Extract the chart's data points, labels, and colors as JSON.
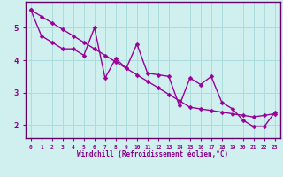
{
  "xlabel": "Windchill (Refroidissement éolien,°C)",
  "bg_color": "#d0f0f0",
  "line_color": "#990099",
  "grid_color": "#aadddd",
  "spine_color": "#660066",
  "tick_label_color": "#880088",
  "xlabel_color": "#880088",
  "xlim": [
    -0.5,
    23.5
  ],
  "ylim": [
    1.6,
    5.8
  ],
  "xticks": [
    0,
    1,
    2,
    3,
    4,
    5,
    6,
    7,
    8,
    9,
    10,
    11,
    12,
    13,
    14,
    15,
    16,
    17,
    18,
    19,
    20,
    21,
    22,
    23
  ],
  "yticks": [
    2,
    3,
    4,
    5
  ],
  "series1_x": [
    0,
    1,
    2,
    3,
    4,
    5,
    6,
    7,
    8,
    9,
    10,
    11,
    12,
    13,
    14,
    15,
    16,
    17,
    18,
    19,
    20,
    21,
    22,
    23
  ],
  "series1_y": [
    5.55,
    4.75,
    4.55,
    4.35,
    4.35,
    4.15,
    5.0,
    3.45,
    4.05,
    3.75,
    4.5,
    3.6,
    3.55,
    3.5,
    2.6,
    3.45,
    3.25,
    3.5,
    2.7,
    2.5,
    2.15,
    1.95,
    1.95,
    2.4
  ],
  "series2_x": [
    0,
    1,
    2,
    3,
    4,
    5,
    6,
    7,
    8,
    9,
    10,
    11,
    12,
    13,
    14,
    15,
    16,
    17,
    18,
    19,
    20,
    21,
    22,
    23
  ],
  "series2_y": [
    5.55,
    5.35,
    5.15,
    4.95,
    4.75,
    4.55,
    4.35,
    4.15,
    3.95,
    3.75,
    3.55,
    3.35,
    3.15,
    2.95,
    2.75,
    2.55,
    2.5,
    2.45,
    2.4,
    2.35,
    2.3,
    2.25,
    2.3,
    2.35
  ],
  "marker_size": 2.5,
  "line_width": 1.0
}
